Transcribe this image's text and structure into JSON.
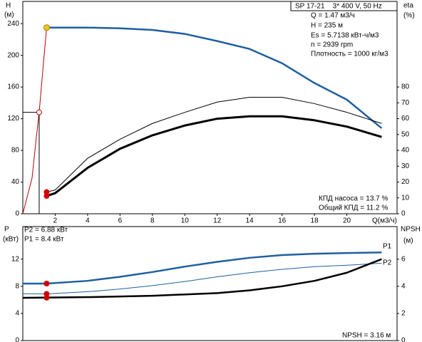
{
  "chart_data": [
    {
      "type": "line",
      "y_label": "H",
      "y_unit": "(м)",
      "y2_label": "eta",
      "y2_unit": "(%)",
      "x_label": "Q(м3/ч)",
      "model": "SP 17-21    3* 400 V, 50 Hz",
      "info": [
        "Q = 1.47 м3/ч",
        "H = 235 м",
        "Es = 5.7138 кВт-ч/м3",
        "n = 2939 rpm",
        "Плотность = 1000 кг/м3"
      ],
      "efficiency": [
        "КПД насоса = 13.7 %",
        "Общий КПД = 11.2 %"
      ],
      "xlim": [
        0,
        23.1
      ],
      "xticks": [
        2,
        4,
        6,
        8,
        10,
        12,
        14,
        16,
        18,
        20
      ],
      "ylim": [
        0,
        268
      ],
      "yticks": [
        0,
        40,
        80,
        120,
        160,
        200,
        240
      ],
      "y2lim": [
        0,
        134
      ],
      "y2ticks": [
        0,
        10,
        20,
        30,
        40,
        50,
        60,
        70,
        80
      ],
      "series": [
        {
          "color": "#1f5fa0",
          "width": 2.5,
          "x": [
            1.47,
            2,
            4,
            6,
            8,
            10,
            12,
            14,
            16,
            18,
            20,
            22.15
          ],
          "values": [
            235,
            235,
            235,
            234,
            232,
            227,
            218,
            208,
            190,
            165,
            144,
            108
          ]
        },
        {
          "color": "#000000",
          "width": 1,
          "axis": "y2",
          "x": [
            1.47,
            2,
            4,
            6,
            8,
            10,
            12,
            14,
            16,
            18,
            20,
            22.15
          ],
          "values": [
            13.7,
            15,
            35,
            47,
            57,
            64,
            70.5,
            73.5,
            73.5,
            69.5,
            64,
            57
          ]
        },
        {
          "color": "#000000",
          "width": 3,
          "axis": "y2",
          "x": [
            1.47,
            2,
            4,
            6,
            8,
            10,
            12,
            14,
            16,
            18,
            20,
            22.15
          ],
          "values": [
            11.2,
            13,
            29,
            41,
            49.5,
            55.7,
            60,
            61.5,
            61.5,
            59,
            55,
            48.5
          ]
        },
        {
          "color": "#c00000",
          "width": 1,
          "x": [
            0,
            0.57,
            0.8,
            1.01,
            1.23,
            1.47
          ],
          "values": [
            0,
            45,
            90,
            128,
            180,
            235
          ]
        },
        {
          "color": "#c00000",
          "width": 1,
          "style": "hollow-droplines",
          "x": [
            1.01
          ],
          "values": [
            128
          ]
        }
      ],
      "markers": [
        {
          "x": 1.47,
          "y": 235,
          "color": "#f5c518"
        },
        {
          "x": 1.47,
          "y": 13.7,
          "axis": "y2",
          "color": "#d00000"
        },
        {
          "x": 1.47,
          "y": 11.2,
          "axis": "y2",
          "color": "#d00000"
        }
      ]
    },
    {
      "type": "line",
      "y_label": "P",
      "y_unit": "(кВт)",
      "y2_label": "NPSH",
      "y2_unit": "(м)",
      "info": [
        "P2 = 6.88 кВт",
        "P1 = 8.4 кВт"
      ],
      "npsh_text": "NPSH = 3.16 м",
      "xlim": [
        0,
        23.1
      ],
      "ylim": [
        0,
        16.8
      ],
      "yticks": [
        0,
        4,
        8,
        12
      ],
      "y2lim": [
        0,
        8.4
      ],
      "y2ticks": [
        0,
        2,
        4,
        6
      ],
      "series": [
        {
          "name": "P1",
          "color": "#1f5fa0",
          "width": 2.5,
          "x": [
            0,
            1.47,
            4,
            6,
            8,
            10,
            12,
            14,
            16,
            18,
            20,
            22.15
          ],
          "values": [
            8.4,
            8.4,
            8.8,
            9.4,
            10.1,
            10.9,
            11.6,
            12.2,
            12.6,
            12.8,
            12.9,
            13.0
          ]
        },
        {
          "name": "P2",
          "color": "#1f5fa0",
          "width": 1,
          "x": [
            0,
            1.47,
            4,
            6,
            8,
            10,
            12,
            14,
            16,
            18,
            20,
            22.15
          ],
          "values": [
            6.9,
            6.88,
            7.2,
            7.6,
            8.1,
            8.7,
            9.4,
            10.0,
            10.5,
            10.9,
            11.1,
            11.4
          ]
        },
        {
          "color": "#000000",
          "width": 2.5,
          "axis": "y2",
          "x": [
            0,
            4,
            8,
            12,
            14,
            16,
            18,
            20,
            22.15
          ],
          "values": [
            3.15,
            3.2,
            3.3,
            3.5,
            3.7,
            4.0,
            4.4,
            5.0,
            6.0
          ]
        }
      ],
      "markers": [
        {
          "x": 1.47,
          "y": 8.4,
          "color": "#d00000"
        },
        {
          "x": 1.47,
          "y": 6.88,
          "color": "#d00000"
        },
        {
          "x": 1.47,
          "y": 3.16,
          "axis": "y2",
          "color": "#d00000"
        }
      ]
    }
  ]
}
